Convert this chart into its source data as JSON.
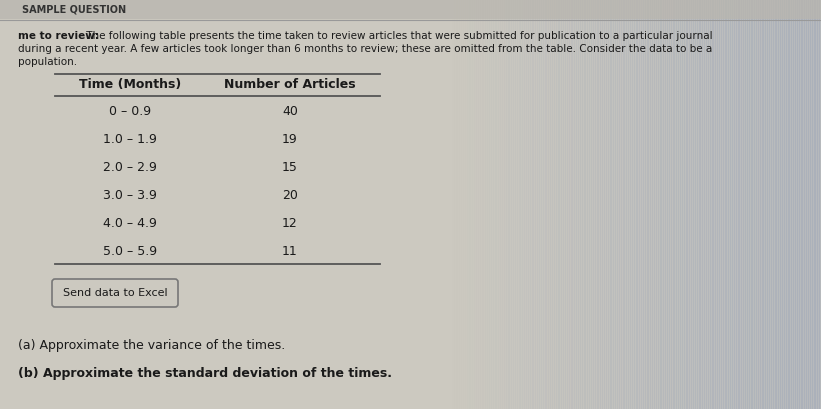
{
  "header_bold": "me to review:",
  "header_text_line1": " The following table presents the time taken to review articles that were submitted for publication to a particular journal",
  "header_text_line2": "during a recent year. A few articles took longer than 6 months to review; these are omitted from the table. Consider the data to be a",
  "header_text_line3": "population.",
  "col1_header": "Time (Months)",
  "col2_header": "Number of Articles",
  "rows": [
    [
      "0 – 0.9",
      "40"
    ],
    [
      "1.0 – 1.9",
      "19"
    ],
    [
      "2.0 – 2.9",
      "15"
    ],
    [
      "3.0 – 3.9",
      "20"
    ],
    [
      "4.0 – 4.9",
      "12"
    ],
    [
      "5.0 – 5.9",
      "11"
    ]
  ],
  "send_button_text": "Send data to Excel",
  "question_a": "(a) Approximate the variance of the times.",
  "question_b": "(b) Approximate the standard deviation of the times.",
  "bg_color_left": "#ccc9c0",
  "bg_color_right": "#9fa8b8",
  "bg_mid": "#b8b8b4",
  "top_bar_color": "#b8b5ae",
  "title_bar_text": "SAMPLE QUESTION",
  "text_color": "#1a1a1a",
  "line_color": "#555555",
  "btn_face": "#ccc9c0",
  "btn_edge": "#777777"
}
